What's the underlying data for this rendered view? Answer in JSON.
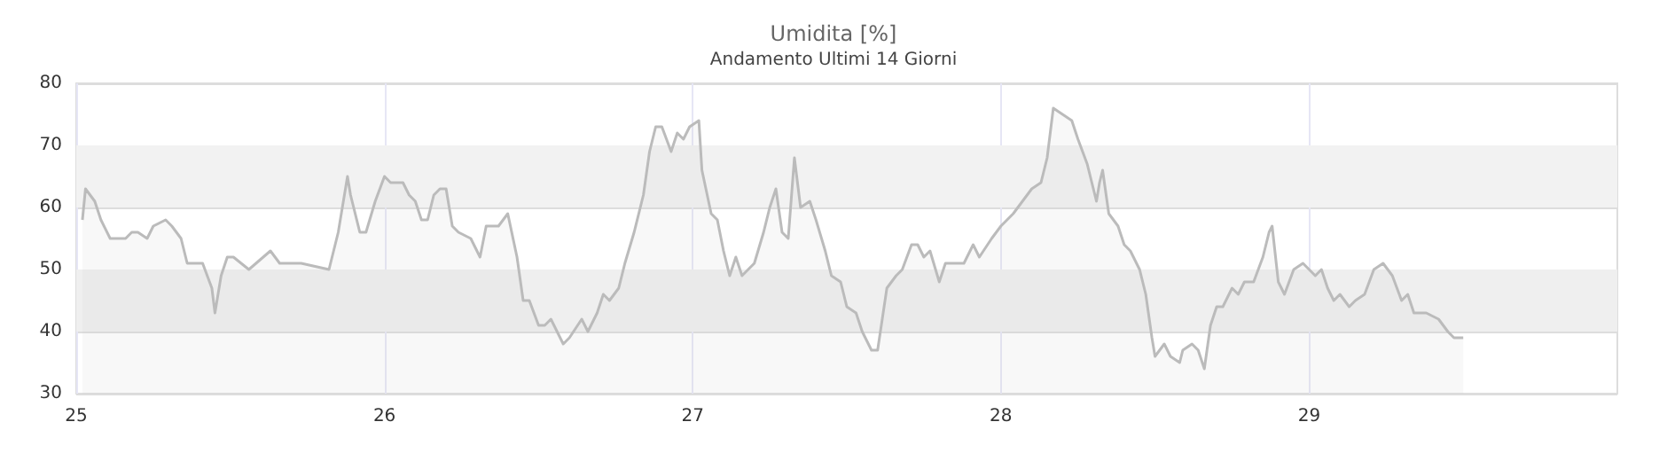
{
  "chart_data": {
    "type": "area",
    "title": "Umidita [%]",
    "subtitle": "Andamento Ultimi 14 Giorni",
    "x": [
      25.02,
      25.03,
      25.06,
      25.08,
      25.11,
      25.16,
      25.18,
      25.2,
      25.23,
      25.25,
      25.29,
      25.31,
      25.34,
      25.36,
      25.41,
      25.44,
      25.45,
      25.47,
      25.49,
      25.51,
      25.56,
      25.63,
      25.66,
      25.73,
      25.82,
      25.85,
      25.88,
      25.89,
      25.92,
      25.94,
      25.97,
      26.0,
      26.02,
      26.06,
      26.08,
      26.1,
      26.12,
      26.14,
      26.16,
      26.18,
      26.2,
      26.22,
      26.24,
      26.28,
      26.31,
      26.33,
      26.37,
      26.4,
      26.43,
      26.45,
      26.47,
      26.5,
      26.52,
      26.54,
      26.56,
      26.58,
      26.6,
      26.64,
      26.66,
      26.69,
      26.71,
      26.73,
      26.76,
      26.78,
      26.81,
      26.84,
      26.86,
      26.88,
      26.9,
      26.93,
      26.95,
      26.97,
      26.99,
      27.02,
      27.03,
      27.06,
      27.08,
      27.1,
      27.12,
      27.14,
      27.16,
      27.2,
      27.23,
      27.25,
      27.27,
      27.29,
      27.31,
      27.33,
      27.35,
      27.38,
      27.4,
      27.43,
      27.45,
      27.48,
      27.5,
      27.53,
      27.55,
      27.58,
      27.6,
      27.63,
      27.66,
      27.68,
      27.71,
      27.73,
      27.75,
      27.77,
      27.8,
      27.82,
      27.88,
      27.91,
      27.93,
      27.97,
      28.0,
      28.04,
      28.07,
      28.1,
      28.13,
      28.15,
      28.17,
      28.2,
      28.23,
      28.25,
      28.28,
      28.31,
      28.32,
      28.33,
      28.35,
      28.38,
      28.4,
      28.42,
      28.45,
      28.47,
      28.49,
      28.5,
      28.53,
      28.55,
      28.58,
      28.59,
      28.62,
      28.64,
      28.66,
      28.68,
      28.7,
      28.72,
      28.75,
      28.77,
      28.79,
      28.82,
      28.85,
      28.87,
      28.88,
      28.9,
      28.92,
      28.95,
      28.98,
      29.02,
      29.04,
      29.06,
      29.08,
      29.1,
      29.13,
      29.15,
      29.18,
      29.21,
      29.24,
      29.27,
      29.3,
      29.32,
      29.34,
      29.38,
      29.42,
      29.45,
      29.47,
      29.5
    ],
    "series": [
      {
        "color": "#bbbbbb",
        "values": [
          58,
          63,
          61,
          58,
          55,
          55,
          56,
          56,
          55,
          57,
          58,
          57,
          55,
          51,
          51,
          47,
          43,
          49,
          52,
          52,
          50,
          53,
          51,
          51,
          50,
          56,
          65,
          62,
          56,
          56,
          61,
          65,
          64,
          64,
          62,
          61,
          58,
          58,
          62,
          63,
          63,
          57,
          56,
          55,
          52,
          57,
          57,
          59,
          52,
          45,
          45,
          41,
          41,
          42,
          40,
          38,
          39,
          42,
          40,
          43,
          46,
          45,
          47,
          51,
          56,
          62,
          69,
          73,
          73,
          69,
          72,
          71,
          73,
          74,
          66,
          59,
          58,
          53,
          49,
          52,
          49,
          51,
          56,
          60,
          63,
          56,
          55,
          68,
          60,
          61,
          58,
          53,
          49,
          48,
          44,
          43,
          40,
          37,
          37,
          47,
          49,
          50,
          54,
          54,
          52,
          53,
          48,
          51,
          51,
          54,
          52,
          55,
          57,
          59,
          61,
          63,
          64,
          68,
          76,
          75,
          74,
          71,
          67,
          61,
          64,
          66,
          59,
          57,
          54,
          53,
          50,
          46,
          39,
          36,
          38,
          36,
          35,
          37,
          38,
          37,
          34,
          41,
          44,
          44,
          47,
          46,
          48,
          48,
          52,
          56,
          57,
          48,
          46,
          50,
          51,
          49,
          50,
          47,
          45,
          46,
          44,
          45,
          46,
          50,
          51,
          49,
          45,
          46,
          43,
          43,
          42,
          40,
          39,
          39
        ]
      }
    ],
    "xlim": [
      25,
      30
    ],
    "xticks": [
      25,
      26,
      27,
      28,
      29
    ],
    "ylim": [
      30,
      80
    ],
    "yticks": [
      30,
      40,
      50,
      60,
      70,
      80
    ],
    "grid": true,
    "bands": [
      {
        "axis": "y",
        "from": 40,
        "to": 50,
        "color": "#efefef"
      },
      {
        "axis": "y",
        "from": 60,
        "to": 70,
        "color": "#f2f2f2"
      }
    ]
  }
}
